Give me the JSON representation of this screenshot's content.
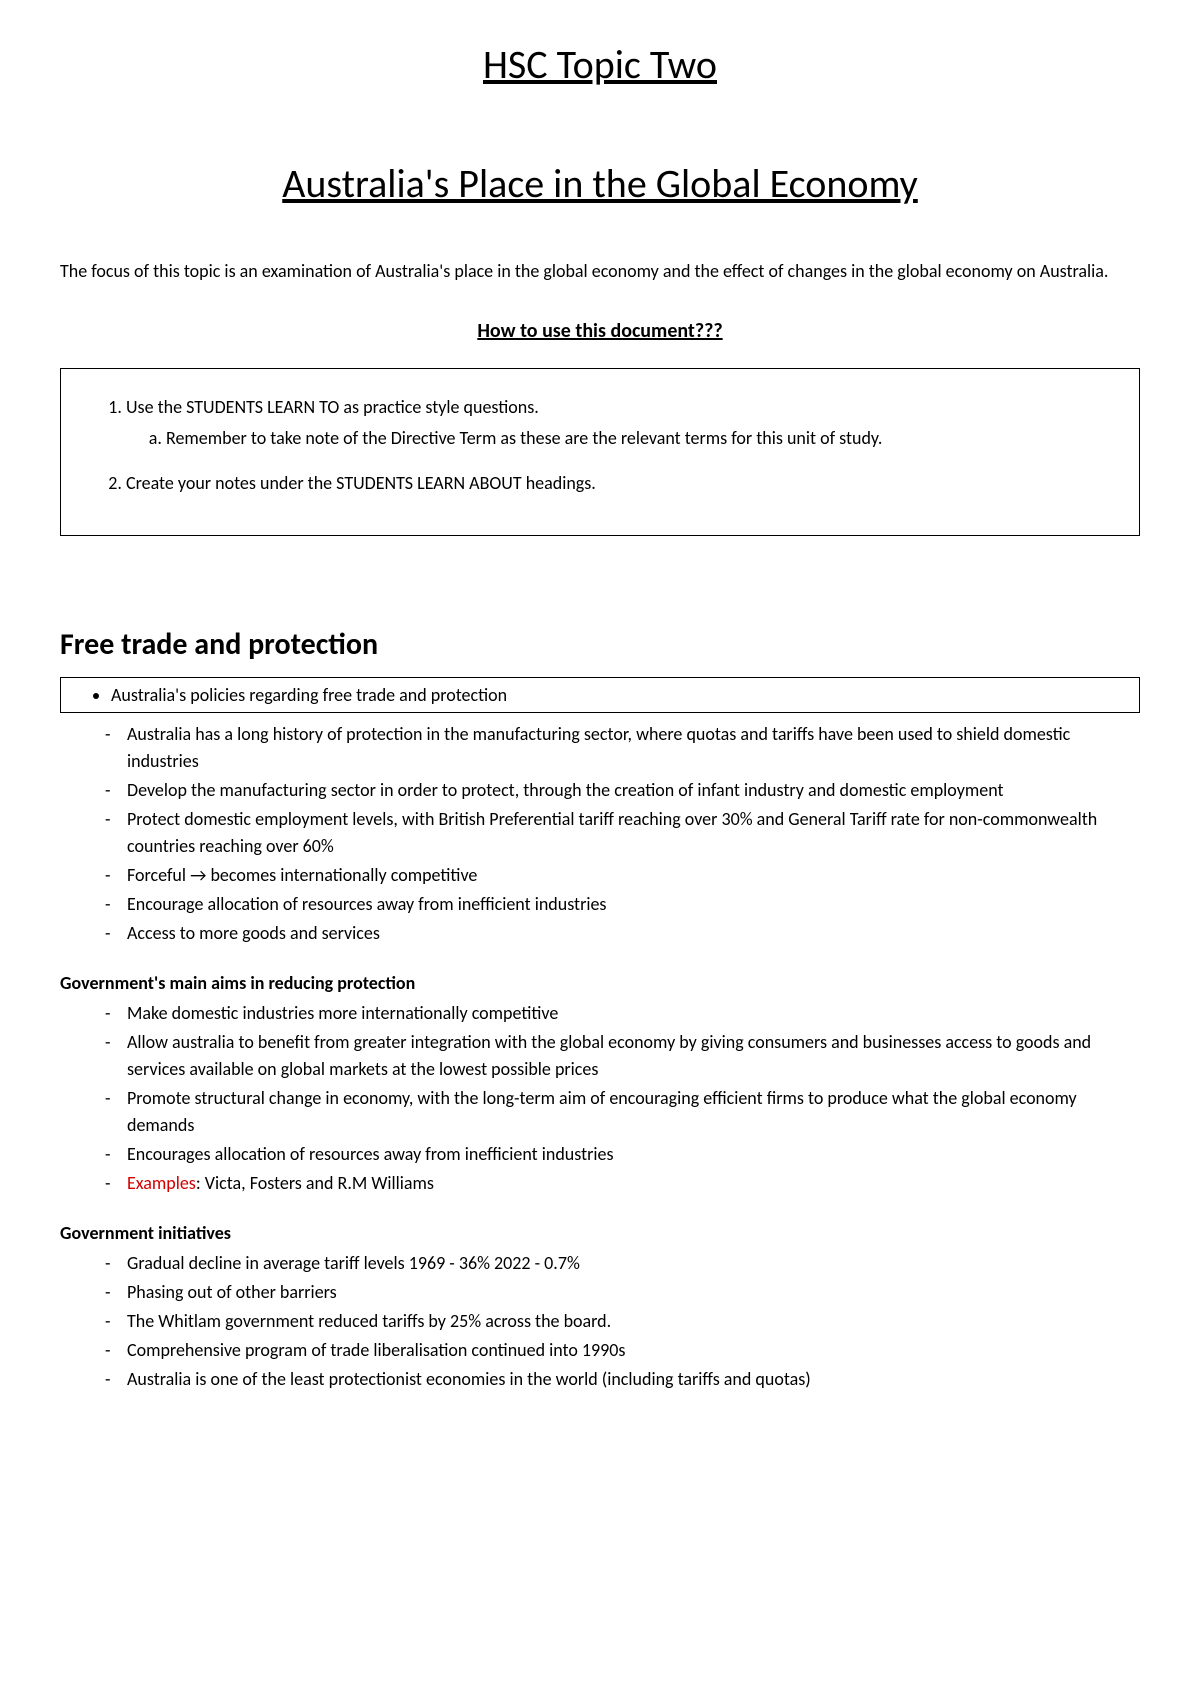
{
  "topicTitle": "HSC Topic Two",
  "mainTitle": "Australia's Place in the Global Economy",
  "intro": "The focus of this topic is an examination of Australia's place in the global economy and the effect of changes in the global economy on Australia.",
  "howtoHeading": "How to use this document???",
  "howto": {
    "item1": "Use the STUDENTS LEARN TO as practice style questions.",
    "item1a": "Remember to take note of the Directive Term as these are the relevant terms for this unit of study.",
    "item2": "Create your notes under the STUDENTS LEARN ABOUT headings."
  },
  "section1": {
    "heading": "Free trade and protection",
    "policyBullet": "Australia's policies regarding free trade and protection",
    "points": [
      "Australia has a long history of protection in the manufacturing sector, where quotas and tariffs have been used to shield domestic industries",
      "Develop the manufacturing sector in order to protect, through the creation of infant industry and domestic employment",
      "Protect domestic employment levels, with British Preferential tariff reaching over 30% and General Tariff rate for non-commonwealth countries reaching over 60%",
      "Forceful → becomes internationally competitive",
      "Encourage allocation of resources away from inefficient industries",
      "Access to more goods and services"
    ],
    "aimsHeading": "Government's main aims in reducing protection",
    "aims": [
      "Make domestic industries more internationally competitive",
      "Allow australia to benefit from greater integration with the global economy by giving consumers and businesses access to goods and services available on global markets at the lowest possible prices",
      "Promote structural change in economy, with the long-term aim of encouraging efficient firms to produce what the global economy demands",
      "Encourages allocation of resources away from inefficient industries"
    ],
    "examplesLabel": "Examples",
    "examplesText": ": Victa, Fosters and R.M Williams",
    "initiativesHeading": "Government initiatives",
    "initiatives": [
      "Gradual decline in average tariff levels 1969 - 36% 2022 - 0.7%",
      "Phasing out of other barriers",
      "The Whitlam government reduced tariffs by 25% across the board.",
      "Comprehensive program of trade liberalisation continued into 1990s",
      "Australia is one of the least protectionist economies in the world (including tariffs and quotas)"
    ]
  }
}
